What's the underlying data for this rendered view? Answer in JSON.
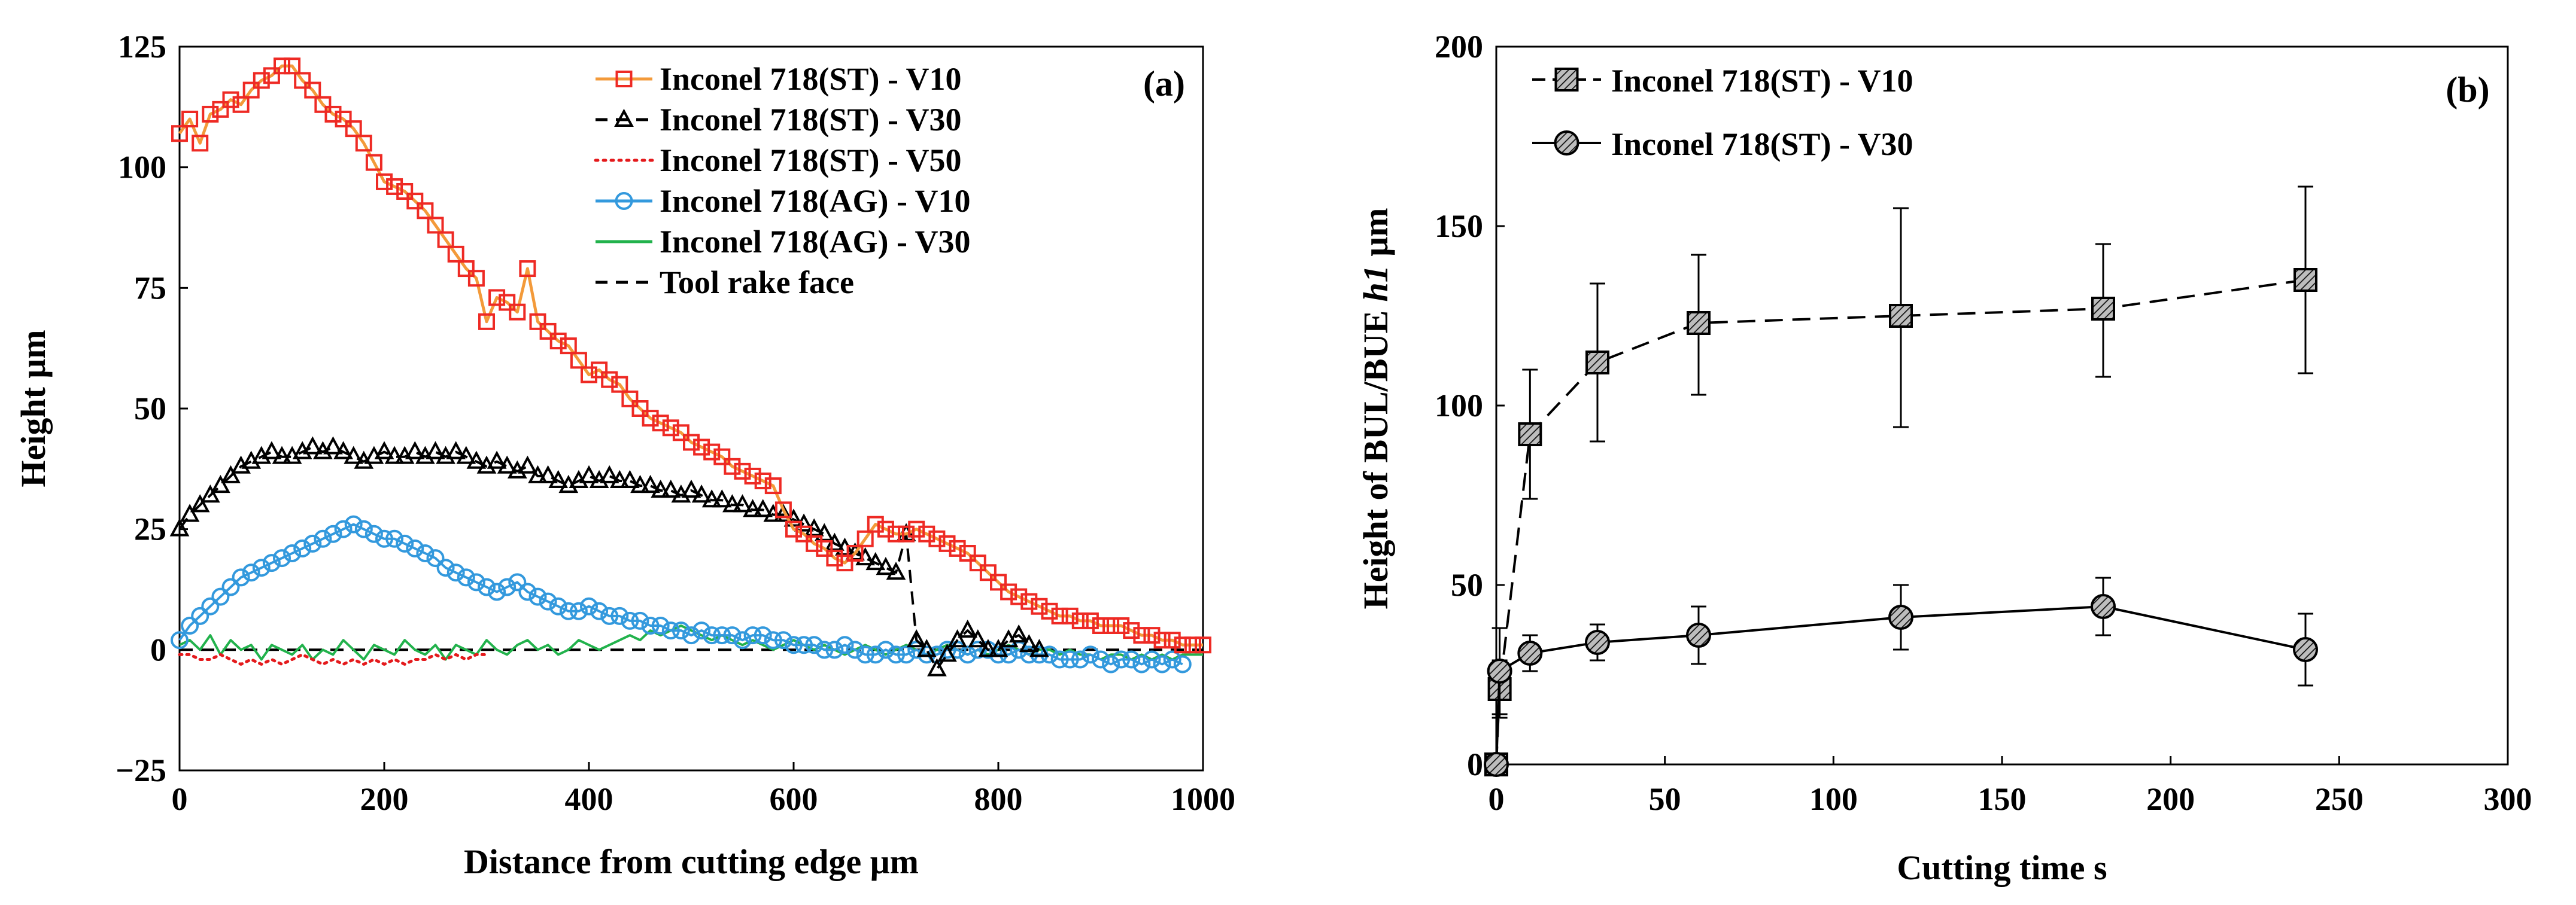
{
  "chart_data": [
    {
      "panel": "(a)",
      "type": "line",
      "xlabel": "Distance from cutting edge μm",
      "ylabel": "Height μm",
      "xlim": [
        0,
        1000
      ],
      "ylim": [
        -25,
        125
      ],
      "xticks": [
        "0",
        "200",
        "400",
        "600",
        "800",
        "1000"
      ],
      "yticks": [
        "125",
        "100",
        "75",
        "50",
        "25",
        "0",
        "−25"
      ],
      "legend_position": "top-right",
      "series": [
        {
          "name": "Inconel 718(ST) - V10",
          "color": "#ee2a24",
          "line_color": "#f39a3a",
          "marker": "square",
          "x": [
            0,
            10,
            20,
            30,
            40,
            50,
            60,
            70,
            80,
            90,
            100,
            110,
            120,
            130,
            140,
            150,
            160,
            170,
            180,
            190,
            200,
            210,
            220,
            230,
            240,
            250,
            260,
            270,
            280,
            290,
            300,
            310,
            320,
            330,
            340,
            350,
            360,
            370,
            380,
            390,
            400,
            410,
            420,
            430,
            440,
            450,
            460,
            470,
            480,
            490,
            500,
            510,
            520,
            530,
            540,
            550,
            560,
            570,
            580,
            590,
            600,
            610,
            620,
            630,
            640,
            650,
            660,
            670,
            680,
            690,
            700,
            710,
            720,
            730,
            740,
            750,
            760,
            770,
            780,
            790,
            800,
            810,
            820,
            830,
            840,
            850,
            860,
            870,
            880,
            890,
            900,
            910,
            920,
            930,
            940,
            950,
            960,
            970,
            980,
            990,
            1000
          ],
          "values": [
            107,
            110,
            105,
            111,
            112,
            114,
            113,
            116,
            118,
            119,
            121,
            121,
            118,
            116,
            113,
            111,
            110,
            108,
            105,
            101,
            97,
            96,
            95,
            93,
            91,
            88,
            85,
            82,
            79,
            77,
            68,
            73,
            72,
            70,
            79,
            68,
            66,
            64,
            63,
            60,
            57,
            58,
            56,
            55,
            52,
            50,
            48,
            47,
            46,
            45,
            43,
            42,
            41,
            40,
            38,
            37,
            36,
            35,
            34,
            29,
            25,
            24,
            22,
            21,
            19,
            18,
            20,
            23,
            26,
            25,
            24,
            24,
            25,
            24,
            23,
            22,
            21,
            20,
            18,
            16,
            14,
            12,
            11,
            10,
            9,
            8,
            7,
            7,
            6,
            6,
            5,
            5,
            5,
            4,
            3,
            3,
            2,
            2,
            1,
            1,
            1
          ]
        },
        {
          "name": "Inconel 718(ST) - V30",
          "color": "#000000",
          "line_color": "#000000",
          "line_style": "dashed",
          "marker": "triangle",
          "x": [
            0,
            10,
            20,
            30,
            40,
            50,
            60,
            70,
            80,
            90,
            100,
            110,
            120,
            130,
            140,
            150,
            160,
            170,
            180,
            190,
            200,
            210,
            220,
            230,
            240,
            250,
            260,
            270,
            280,
            290,
            300,
            310,
            320,
            330,
            340,
            350,
            360,
            370,
            380,
            390,
            400,
            410,
            420,
            430,
            440,
            450,
            460,
            470,
            480,
            490,
            500,
            510,
            520,
            530,
            540,
            550,
            560,
            570,
            580,
            590,
            600,
            610,
            620,
            630,
            640,
            650,
            660,
            670,
            680,
            690,
            700,
            710,
            720,
            730,
            740,
            750,
            760,
            770,
            780,
            790,
            800,
            810,
            820,
            830,
            840
          ],
          "values": [
            25,
            28,
            30,
            32,
            34,
            36,
            38,
            39,
            40,
            41,
            40,
            40,
            41,
            42,
            41,
            42,
            41,
            40,
            39,
            40,
            41,
            40,
            40,
            41,
            40,
            41,
            40,
            41,
            40,
            39,
            38,
            39,
            38,
            37,
            38,
            36,
            36,
            35,
            34,
            35,
            36,
            35,
            36,
            35,
            35,
            34,
            34,
            33,
            33,
            32,
            33,
            32,
            31,
            31,
            30,
            30,
            29,
            29,
            28,
            28,
            27,
            26,
            25,
            24,
            22,
            21,
            20,
            19,
            18,
            17,
            16,
            24,
            2,
            0,
            -4,
            -1,
            2,
            4,
            2,
            0,
            0,
            2,
            3,
            1,
            0
          ]
        },
        {
          "name": "Inconel 718(ST) - V50",
          "color": "#e41a1c",
          "line_style": "dotted",
          "marker": "none",
          "x": [
            0,
            10,
            20,
            30,
            40,
            50,
            60,
            70,
            80,
            90,
            100,
            110,
            120,
            130,
            140,
            150,
            160,
            170,
            180,
            190,
            200,
            210,
            220,
            230,
            240,
            250,
            260,
            270,
            280,
            290,
            300
          ],
          "values": [
            -1,
            -1,
            -2,
            -2,
            -1,
            -2,
            -3,
            -2,
            -3,
            -2,
            -3,
            -2,
            -1,
            -2,
            -3,
            -2,
            -3,
            -2,
            -3,
            -2,
            -3,
            -2,
            -3,
            -2,
            -2,
            -1,
            -2,
            -1,
            -2,
            -1,
            -1
          ]
        },
        {
          "name": "Inconel 718(AG) - V10",
          "color": "#3399dd",
          "line_color": "#3399dd",
          "marker": "circle",
          "x": [
            0,
            10,
            20,
            30,
            40,
            50,
            60,
            70,
            80,
            90,
            100,
            110,
            120,
            130,
            140,
            150,
            160,
            170,
            180,
            190,
            200,
            210,
            220,
            230,
            240,
            250,
            260,
            270,
            280,
            290,
            300,
            310,
            320,
            330,
            340,
            350,
            360,
            370,
            380,
            390,
            400,
            410,
            420,
            430,
            440,
            450,
            460,
            470,
            480,
            490,
            500,
            510,
            520,
            530,
            540,
            550,
            560,
            570,
            580,
            590,
            600,
            610,
            620,
            630,
            640,
            650,
            660,
            670,
            680,
            690,
            700,
            710,
            720,
            730,
            740,
            750,
            760,
            770,
            780,
            790,
            800,
            810,
            820,
            830,
            840,
            850,
            860,
            870,
            880,
            890,
            900,
            910,
            920,
            930,
            940,
            950,
            960,
            970,
            980
          ],
          "values": [
            2,
            5,
            7,
            9,
            11,
            13,
            15,
            16,
            17,
            18,
            19,
            20,
            21,
            22,
            23,
            24,
            25,
            26,
            25,
            24,
            23,
            23,
            22,
            21,
            20,
            19,
            17,
            16,
            15,
            14,
            13,
            12,
            13,
            14,
            12,
            11,
            10,
            9,
            8,
            8,
            9,
            8,
            7,
            7,
            6,
            6,
            5,
            5,
            4,
            4,
            3,
            4,
            3,
            3,
            3,
            2,
            3,
            3,
            2,
            2,
            1,
            1,
            1,
            0,
            0,
            1,
            0,
            -1,
            -1,
            0,
            -1,
            -1,
            0,
            -1,
            -1,
            0,
            0,
            -1,
            0,
            0,
            -1,
            -1,
            0,
            -1,
            -1,
            -1,
            -2,
            -2,
            -2,
            -1,
            -2,
            -3,
            -2,
            -2,
            -3,
            -2,
            -3,
            -2,
            -3
          ]
        },
        {
          "name": "Inconel 718(AG) - V30",
          "color": "#22b24c",
          "marker": "none",
          "x": [
            0,
            10,
            20,
            30,
            40,
            50,
            60,
            70,
            80,
            90,
            100,
            110,
            120,
            130,
            140,
            150,
            160,
            170,
            180,
            190,
            200,
            210,
            220,
            230,
            240,
            250,
            260,
            270,
            280,
            290,
            300,
            310,
            320,
            330,
            340,
            350,
            360,
            370,
            380,
            390,
            400,
            410,
            420,
            430,
            440,
            450,
            460,
            470,
            480,
            490,
            500,
            510,
            520,
            530,
            540,
            550,
            560,
            570,
            580,
            590,
            600,
            610,
            620,
            630,
            640,
            650,
            660,
            670,
            680,
            690,
            700,
            710,
            720,
            730,
            740,
            750,
            760,
            770,
            780,
            790,
            800,
            810,
            820,
            830,
            840,
            850,
            860,
            870,
            880,
            890,
            900,
            910,
            920,
            930,
            940,
            950,
            960,
            970,
            980,
            990,
            1000
          ],
          "values": [
            1,
            2,
            0,
            3,
            -1,
            2,
            0,
            1,
            -2,
            1,
            0,
            -1,
            1,
            -2,
            0,
            -1,
            2,
            0,
            -2,
            1,
            0,
            -1,
            2,
            0,
            -1,
            1,
            -2,
            1,
            0,
            -1,
            2,
            0,
            -1,
            1,
            2,
            0,
            1,
            -1,
            0,
            2,
            1,
            0,
            1,
            2,
            3,
            2,
            4,
            3,
            4,
            5,
            4,
            3,
            2,
            3,
            2,
            1,
            2,
            1,
            0,
            1,
            2,
            1,
            0,
            1,
            0,
            -1,
            0,
            1,
            0,
            -1,
            0,
            1,
            0,
            -1,
            0,
            1,
            0,
            -1,
            0,
            -1,
            0,
            1,
            0,
            -1,
            0,
            0,
            -1,
            0,
            -1,
            -1,
            -2,
            -1,
            -1,
            -2,
            -1,
            -2,
            -1,
            -2,
            -1,
            -1,
            -1
          ]
        },
        {
          "name": "Tool rake face",
          "color": "#000000",
          "line_style": "dashed",
          "marker": "none",
          "x": [
            0,
            1000
          ],
          "values": [
            0,
            0
          ]
        }
      ]
    },
    {
      "panel": "(b)",
      "type": "line",
      "xlabel": "Cutting time s",
      "ylabel_parts": [
        "Height of BUL/BUE ",
        "h1",
        " μm"
      ],
      "xlim": [
        0,
        300
      ],
      "ylim": [
        0,
        200
      ],
      "xticks": [
        "0",
        "50",
        "100",
        "150",
        "200",
        "250",
        "300"
      ],
      "yticks": [
        "200",
        "150",
        "100",
        "50",
        "0"
      ],
      "legend_position": "top-left",
      "series": [
        {
          "name": "Inconel 718(ST) - V10",
          "marker": "hatched-square",
          "line_style": "dashed",
          "x": [
            0,
            1,
            10,
            30,
            60,
            120,
            180,
            240
          ],
          "values": [
            0,
            21,
            92,
            112,
            123,
            125,
            127,
            135
          ],
          "err_low": [
            0,
            8,
            18,
            22,
            20,
            31,
            19,
            26
          ],
          "err_high": [
            0,
            8,
            18,
            22,
            19,
            30,
            18,
            26
          ]
        },
        {
          "name": "Inconel 718(ST) - V30",
          "marker": "hatched-circle",
          "line_style": "solid",
          "x": [
            0,
            1,
            10,
            30,
            60,
            120,
            180,
            240
          ],
          "values": [
            0,
            26,
            31,
            34,
            36,
            41,
            44,
            32
          ],
          "err_low": [
            0,
            12,
            5,
            5,
            8,
            9,
            8,
            10
          ],
          "err_high": [
            0,
            12,
            5,
            5,
            8,
            9,
            8,
            10
          ]
        }
      ]
    }
  ]
}
